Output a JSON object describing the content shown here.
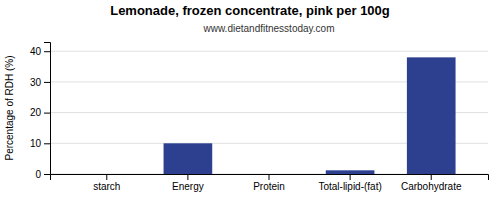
{
  "chart_data": {
    "type": "bar",
    "title": "Lemonade, frozen concentrate, pink per 100g",
    "subtitle": "www.dietandfitnesstoday.com",
    "categories": [
      "starch",
      "Energy",
      "Protein",
      "Total-lipid-(fat)",
      "Carbohydrate"
    ],
    "values": [
      0,
      10,
      0,
      1.2,
      38
    ],
    "color": "#2d4090",
    "ylabel": "Percentage of RDH (%)",
    "ylim": [
      0,
      43
    ],
    "yticks": [
      0,
      10,
      20,
      30,
      40
    ],
    "grid": true
  }
}
